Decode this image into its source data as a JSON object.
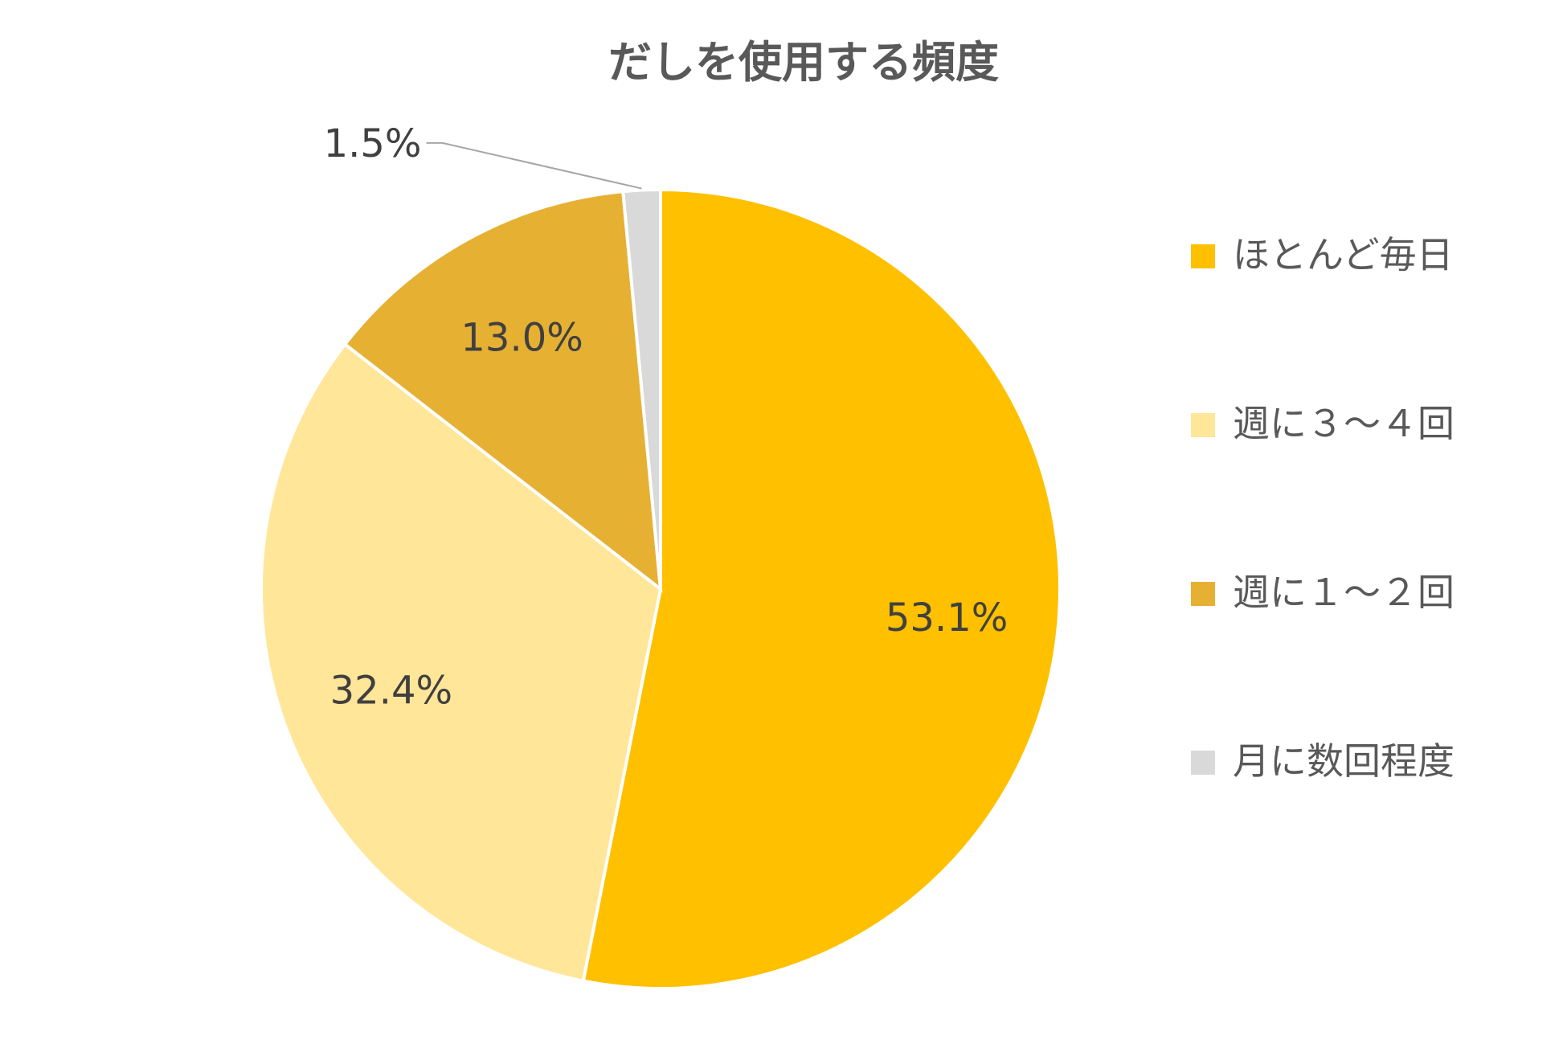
{
  "chart_data": {
    "type": "pie",
    "title": "だしを使用する頻度",
    "categories": [
      "ほとんど毎日",
      "週に３～４回",
      "週に１～２回",
      "月に数回程度"
    ],
    "values": [
      53.1,
      32.4,
      13.0,
      1.5
    ],
    "data_labels": [
      "53.1%",
      "32.4%",
      "13.0%",
      "1.5%"
    ],
    "colors": [
      "#FFC000",
      "#FFE699",
      "#E6B033",
      "#D9D9D9"
    ],
    "start_angle_deg": 0,
    "direction": "clockwise",
    "legend_position": "right",
    "leader_line_on": [
      "1.5%"
    ]
  }
}
